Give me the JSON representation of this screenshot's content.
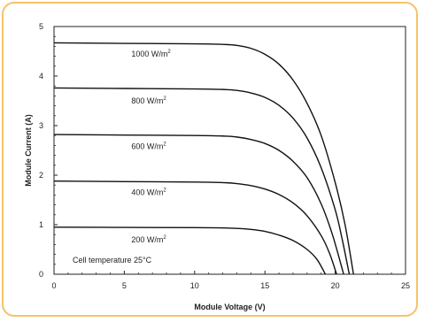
{
  "chart_data": {
    "type": "line",
    "xlabel": "Module Voltage (V)",
    "ylabel": "Module Current (A)",
    "xlim": [
      0,
      25
    ],
    "ylim": [
      0,
      5
    ],
    "xticks": [
      "0",
      "5",
      "10",
      "15",
      "20",
      "25"
    ],
    "yticks": [
      "0",
      "1",
      "2",
      "3",
      "4",
      "5"
    ],
    "grid": false,
    "annotation": "Cell temperature 25°C",
    "series": [
      {
        "label": "1000 W/m",
        "label_sup": "2",
        "label_at": [
          5.5,
          4.45
        ],
        "isc": 4.67,
        "voc": 21.3,
        "points": [
          [
            0,
            4.67
          ],
          [
            5,
            4.66
          ],
          [
            10,
            4.65
          ],
          [
            12,
            4.64
          ],
          [
            13,
            4.62
          ],
          [
            14,
            4.56
          ],
          [
            15,
            4.44
          ],
          [
            16,
            4.24
          ],
          [
            17,
            3.92
          ],
          [
            18,
            3.45
          ],
          [
            19,
            2.8
          ],
          [
            20,
            1.85
          ],
          [
            20.7,
            1.0
          ],
          [
            21.3,
            0
          ]
        ]
      },
      {
        "label": "800 W/m",
        "label_sup": "2",
        "label_at": [
          5.5,
          3.5
        ],
        "isc": 3.76,
        "voc": 21.0,
        "points": [
          [
            0,
            3.76
          ],
          [
            5,
            3.75
          ],
          [
            10,
            3.74
          ],
          [
            12,
            3.73
          ],
          [
            13,
            3.71
          ],
          [
            14,
            3.66
          ],
          [
            15,
            3.57
          ],
          [
            16,
            3.41
          ],
          [
            17,
            3.15
          ],
          [
            18,
            2.75
          ],
          [
            19,
            2.15
          ],
          [
            20,
            1.3
          ],
          [
            20.5,
            0.7
          ],
          [
            21.0,
            0
          ]
        ]
      },
      {
        "label": "600 W/m",
        "label_sup": "2",
        "label_at": [
          5.5,
          2.58
        ],
        "isc": 2.82,
        "voc": 20.6,
        "points": [
          [
            0,
            2.82
          ],
          [
            5,
            2.81
          ],
          [
            10,
            2.8
          ],
          [
            12,
            2.79
          ],
          [
            13,
            2.77
          ],
          [
            14,
            2.72
          ],
          [
            15,
            2.64
          ],
          [
            16,
            2.5
          ],
          [
            17,
            2.28
          ],
          [
            18,
            1.95
          ],
          [
            19,
            1.42
          ],
          [
            19.8,
            0.8
          ],
          [
            20.6,
            0
          ]
        ]
      },
      {
        "label": "400 W/m",
        "label_sup": "2",
        "label_at": [
          5.5,
          1.65
        ],
        "isc": 1.88,
        "voc": 20.1,
        "points": [
          [
            0,
            1.88
          ],
          [
            5,
            1.87
          ],
          [
            10,
            1.86
          ],
          [
            12,
            1.85
          ],
          [
            13,
            1.83
          ],
          [
            14,
            1.79
          ],
          [
            15,
            1.72
          ],
          [
            16,
            1.61
          ],
          [
            17,
            1.44
          ],
          [
            18,
            1.18
          ],
          [
            19,
            0.78
          ],
          [
            19.6,
            0.42
          ],
          [
            20.1,
            0
          ]
        ]
      },
      {
        "label": "200 W/m",
        "label_sup": "2",
        "label_at": [
          5.5,
          0.7
        ],
        "isc": 0.95,
        "voc": 19.3,
        "points": [
          [
            0,
            0.95
          ],
          [
            5,
            0.945
          ],
          [
            10,
            0.94
          ],
          [
            12,
            0.935
          ],
          [
            13,
            0.925
          ],
          [
            14,
            0.905
          ],
          [
            15,
            0.865
          ],
          [
            16,
            0.79
          ],
          [
            17,
            0.68
          ],
          [
            18,
            0.5
          ],
          [
            18.7,
            0.3
          ],
          [
            19.3,
            0
          ]
        ]
      }
    ]
  }
}
